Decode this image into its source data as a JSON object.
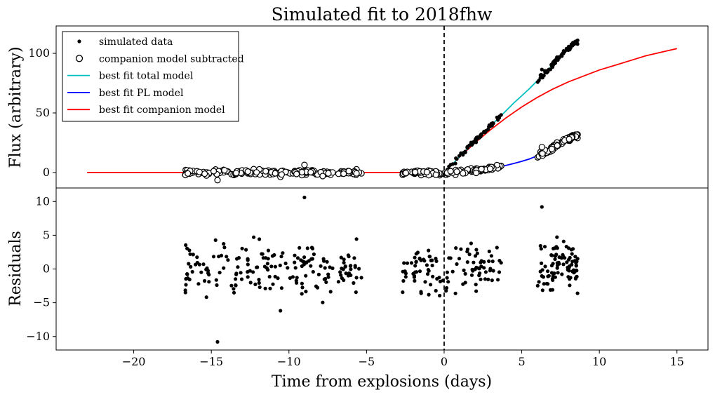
{
  "chart_data": {
    "type": "scatter",
    "title": "Simulated fit to 2018fhw",
    "xlabel": "Time from explosions (days)",
    "xlim": [
      -25,
      17
    ],
    "xticks": [
      -20,
      -15,
      -10,
      -5,
      0,
      5,
      10,
      15
    ],
    "xtick_labels": [
      "−20",
      "−15",
      "−10",
      "−5",
      "0",
      "5",
      "10",
      "15"
    ],
    "explosion_marker_x": 0,
    "panels": [
      {
        "id": "fit",
        "ylabel": "Flux (arbitrary)",
        "ylim": [
          -13,
          123
        ],
        "yticks": [
          0,
          50,
          100
        ],
        "ytick_labels": [
          "0",
          "50",
          "100"
        ],
        "legend_position": "upper-left",
        "legend": [
          {
            "label": "simulated data",
            "marker": "filled-dot",
            "color": "#000000"
          },
          {
            "label": "companion model subtracted",
            "marker": "open-circle",
            "color": "#000000"
          },
          {
            "label": "best fit total model",
            "marker": "line",
            "color": "#00bfbf"
          },
          {
            "label": "best fit PL model",
            "marker": "line",
            "color": "#0000ff"
          },
          {
            "label": "best fit companion model",
            "marker": "line",
            "color": "#ff0000"
          }
        ],
        "series": [
          {
            "name": "best fit companion model",
            "kind": "line",
            "color": "#ff0000",
            "x": [
              -23,
              0,
              1,
              2,
              3,
              4,
              5,
              6,
              7,
              8,
              9,
              10,
              11,
              12,
              13,
              14,
              15
            ],
            "y": [
              0,
              0,
              13,
              25,
              36,
              46,
              55,
              63,
              70,
              76,
              81,
              86,
              90,
              94,
              98,
              101,
              104
            ]
          },
          {
            "name": "best fit PL model",
            "kind": "line",
            "color": "#0000ff",
            "x": [
              0,
              0.5,
              1,
              1.5,
              2,
              2.5,
              3,
              3.5,
              4,
              4.5,
              5,
              5.5,
              6,
              6.5,
              7,
              7.5,
              8,
              8.5
            ],
            "y": [
              0,
              0.1,
              0.4,
              0.8,
              1.5,
              2.3,
              3.3,
              4.5,
              6,
              7.6,
              9.4,
              11.4,
              14,
              17,
              20.5,
              24,
              27.5,
              31
            ]
          },
          {
            "name": "best fit total model",
            "kind": "line",
            "color": "#00bfbf",
            "x": [
              0,
              0.5,
              1,
              1.5,
              2,
              2.5,
              3,
              3.5,
              4,
              4.5,
              5,
              5.5,
              6,
              6.5,
              7,
              7.5,
              8,
              8.5
            ],
            "y": [
              0,
              6.5,
              13.4,
              19.8,
              26.5,
              33,
              39.3,
              45.5,
              52,
              58.5,
              64.4,
              70.4,
              77,
              83.5,
              90.5,
              97,
              103.5,
              110
            ]
          }
        ],
        "data_segments": [
          {
            "x_range": [
              -16.7,
              -5.3
            ],
            "n": 180
          },
          {
            "x_range": [
              -2.7,
              3.8
            ],
            "n": 110
          },
          {
            "x_range": [
              6.0,
              8.6
            ],
            "n": 90
          }
        ]
      },
      {
        "id": "residuals",
        "ylabel": "Residuals",
        "ylim": [
          -12,
          12
        ],
        "yticks": [
          -10,
          -5,
          0,
          5,
          10
        ],
        "ytick_labels": [
          "−10",
          "−5",
          "0",
          "5",
          "10"
        ],
        "residual_sigma": 3,
        "residual_extremes": [
          [
            -9,
            10.6
          ],
          [
            -14.6,
            -10.8
          ],
          [
            6.3,
            9.2
          ]
        ]
      }
    ]
  }
}
